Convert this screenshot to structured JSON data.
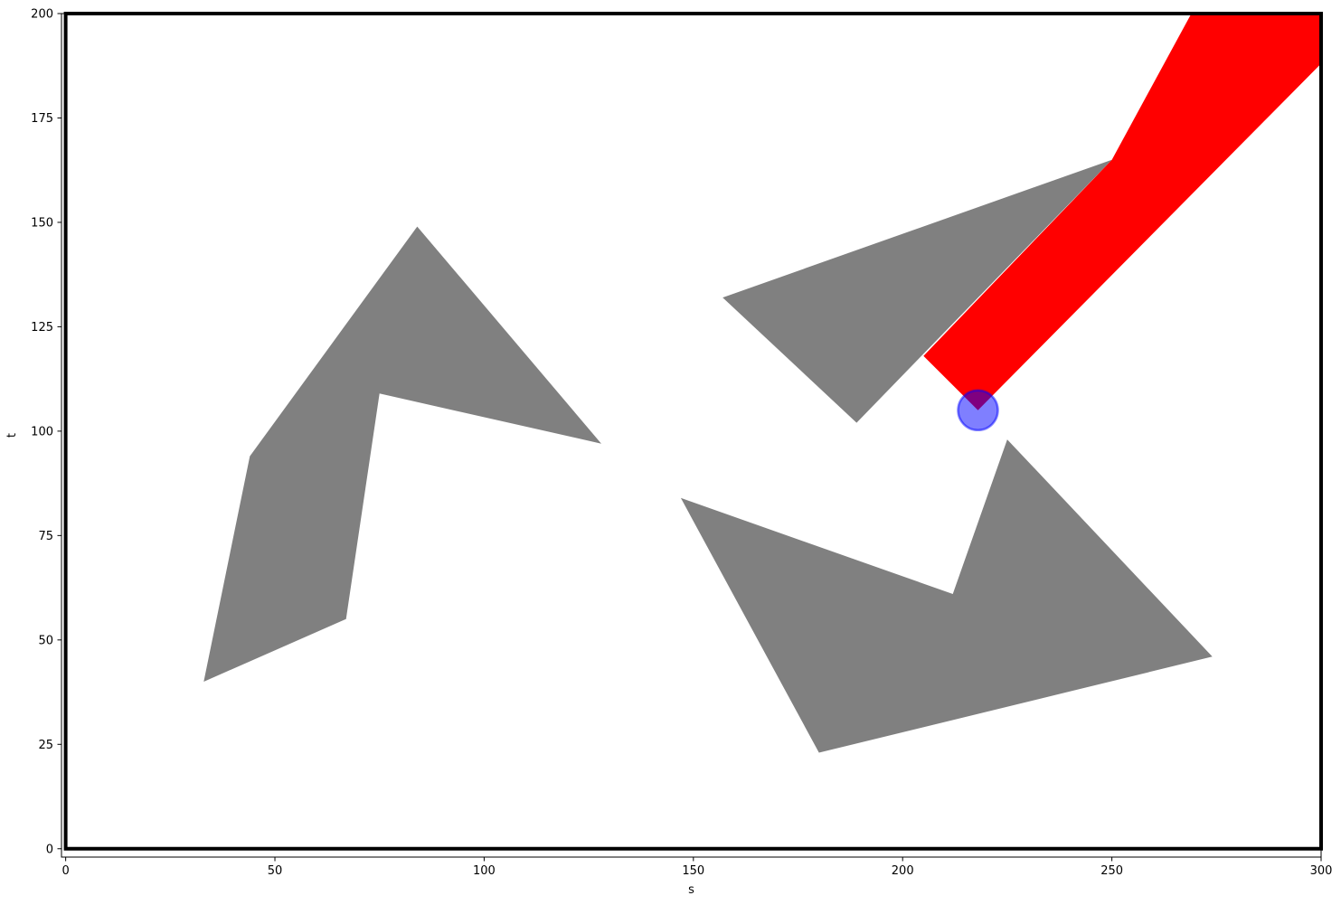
{
  "chart_data": {
    "type": "scatter",
    "title": "",
    "xlabel": "s",
    "ylabel": "t",
    "xlim": [
      -1,
      300
    ],
    "ylim": [
      -2,
      200
    ],
    "grid": false,
    "x_ticks": [
      0,
      50,
      100,
      150,
      200,
      250,
      300
    ],
    "y_ticks": [
      0,
      25,
      50,
      75,
      100,
      125,
      150,
      175,
      200
    ],
    "obstacles": [
      {
        "color": "#808080",
        "points": [
          [
            84,
            149
          ],
          [
            128,
            97
          ],
          [
            75,
            109
          ],
          [
            67,
            55
          ],
          [
            33,
            40
          ],
          [
            44,
            94
          ]
        ]
      },
      {
        "color": "#808080",
        "points": [
          [
            157,
            132
          ],
          [
            250,
            165
          ],
          [
            189,
            102
          ]
        ]
      },
      {
        "color": "#808080",
        "points": [
          [
            147,
            84
          ],
          [
            212,
            61
          ],
          [
            225,
            98
          ],
          [
            274,
            46
          ],
          [
            180,
            23
          ]
        ]
      }
    ],
    "shadow_region": {
      "color": "#ff0000",
      "points": [
        [
          205,
          118
        ],
        [
          218,
          105
        ],
        [
          300,
          188
        ],
        [
          300,
          200
        ],
        [
          269,
          200
        ],
        [
          250,
          165
        ]
      ]
    },
    "point": {
      "x": 218,
      "y": 105,
      "color": "#0000ff"
    },
    "boundary": {
      "color": "#000000",
      "points": [
        [
          0,
          0
        ],
        [
          300,
          0
        ],
        [
          300,
          200
        ],
        [
          0,
          200
        ]
      ]
    }
  }
}
